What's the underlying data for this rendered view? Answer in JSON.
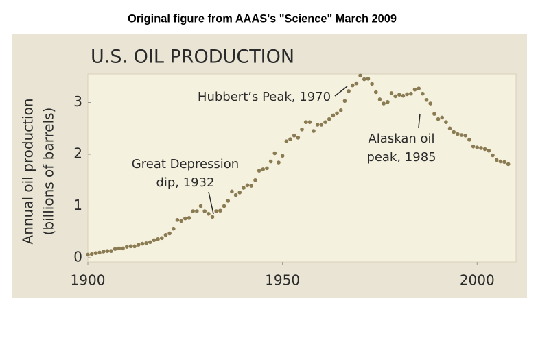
{
  "caption": "Original figure from AAAS's \"Science\" March 2009",
  "chart_data": {
    "type": "scatter",
    "title": "U.S. OIL PRODUCTION",
    "y_label": [
      "Annual oil production",
      "(billions of barrels)"
    ],
    "annotations": [
      [
        "Hubbert’s Peak, 1970"
      ],
      [
        "Great Depression",
        "dip, 1932"
      ],
      [
        "Alaskan oil",
        "peak, 1985"
      ]
    ],
    "color": "#8a7b52",
    "x": [
      1900,
      1901,
      1902,
      1903,
      1904,
      1905,
      1906,
      1907,
      1908,
      1909,
      1910,
      1911,
      1912,
      1913,
      1914,
      1915,
      1916,
      1917,
      1918,
      1919,
      1920,
      1921,
      1922,
      1923,
      1924,
      1925,
      1926,
      1927,
      1928,
      1929,
      1930,
      1931,
      1932,
      1933,
      1934,
      1935,
      1936,
      1937,
      1938,
      1939,
      1940,
      1941,
      1942,
      1943,
      1944,
      1945,
      1946,
      1947,
      1948,
      1949,
      1950,
      1951,
      1952,
      1953,
      1954,
      1955,
      1956,
      1957,
      1958,
      1959,
      1960,
      1961,
      1962,
      1963,
      1964,
      1965,
      1966,
      1967,
      1968,
      1969,
      1970,
      1971,
      1972,
      1973,
      1974,
      1975,
      1976,
      1977,
      1978,
      1979,
      1980,
      1981,
      1982,
      1983,
      1984,
      1985,
      1986,
      1987,
      1988,
      1989,
      1990,
      1991,
      1992,
      1993,
      1994,
      1995,
      1996,
      1997,
      1998,
      1999,
      2000,
      2001,
      2002,
      2003,
      2004,
      2005,
      2006,
      2007,
      2008
    ],
    "values": [
      0.06,
      0.07,
      0.09,
      0.1,
      0.12,
      0.13,
      0.13,
      0.17,
      0.18,
      0.18,
      0.21,
      0.22,
      0.22,
      0.25,
      0.27,
      0.28,
      0.3,
      0.34,
      0.36,
      0.38,
      0.44,
      0.47,
      0.56,
      0.73,
      0.71,
      0.76,
      0.77,
      0.9,
      0.9,
      1.0,
      0.9,
      0.85,
      0.79,
      0.9,
      0.91,
      1.0,
      1.1,
      1.28,
      1.21,
      1.26,
      1.35,
      1.4,
      1.39,
      1.5,
      1.68,
      1.71,
      1.73,
      1.86,
      2.02,
      1.84,
      1.97,
      2.25,
      2.29,
      2.36,
      2.32,
      2.48,
      2.62,
      2.62,
      2.45,
      2.57,
      2.57,
      2.62,
      2.68,
      2.75,
      2.79,
      2.85,
      3.03,
      3.22,
      3.33,
      3.37,
      3.52,
      3.45,
      3.46,
      3.36,
      3.2,
      3.06,
      2.98,
      3.01,
      3.18,
      3.12,
      3.15,
      3.13,
      3.16,
      3.17,
      3.25,
      3.27,
      3.17,
      3.05,
      2.98,
      2.78,
      2.68,
      2.71,
      2.62,
      2.5,
      2.43,
      2.39,
      2.37,
      2.36,
      2.28,
      2.15,
      2.13,
      2.12,
      2.1,
      2.07,
      1.98,
      1.89,
      1.86,
      1.85,
      1.81
    ],
    "xlim": [
      1900,
      2010
    ],
    "xticks": [
      1900,
      1950,
      2000
    ],
    "ylim": [
      -0.08,
      3.55
    ],
    "yticks": [
      0,
      1,
      2,
      3
    ]
  }
}
